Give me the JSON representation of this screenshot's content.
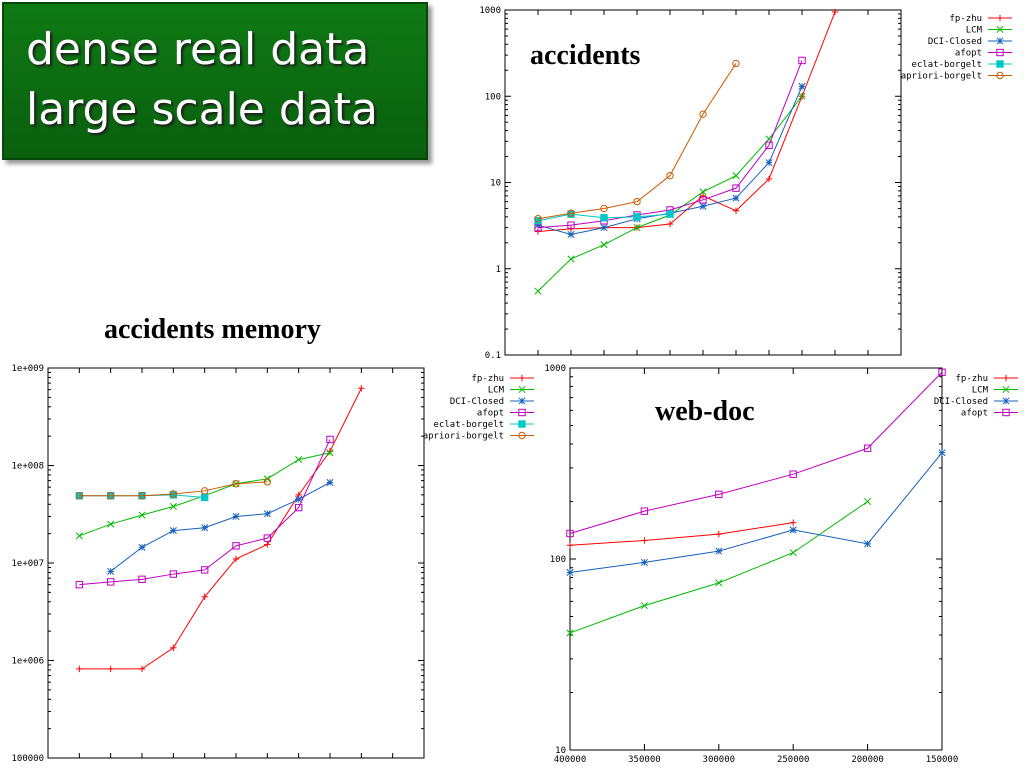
{
  "slide": {
    "title_lines": [
      "dense real data",
      "large scale data"
    ]
  },
  "chart_data": [
    {
      "id": "accidents",
      "type": "line",
      "title": "accidents",
      "yscale": "log",
      "ylim": [
        0.1,
        1000
      ],
      "yticks": [
        "1000",
        "100",
        "10",
        "1",
        "0.1"
      ],
      "xlim": [
        0,
        12
      ],
      "x": [
        1,
        2,
        3,
        4,
        5,
        6,
        7,
        8,
        9,
        10
      ],
      "legend_position": "top-right",
      "series": [
        {
          "name": "fp-zhu",
          "color": "#ff0000",
          "marker": "plus",
          "values": [
            2.7,
            2.9,
            3.0,
            3.0,
            3.3,
            7.0,
            4.7,
            11,
            100,
            950
          ]
        },
        {
          "name": "LCM",
          "color": "#00bb00",
          "marker": "x",
          "values": [
            0.55,
            1.3,
            1.9,
            3.0,
            4.2,
            7.8,
            12,
            32,
            100,
            null
          ]
        },
        {
          "name": "DCI-Closed",
          "color": "#1560bd",
          "marker": "star",
          "values": [
            3.2,
            2.5,
            3.0,
            3.8,
            4.4,
            5.3,
            6.6,
            17,
            130,
            null
          ]
        },
        {
          "name": "afopt",
          "color": "#c000c0",
          "marker": "square",
          "values": [
            3.0,
            3.2,
            3.6,
            4.2,
            4.8,
            6.3,
            8.6,
            27,
            260,
            null
          ]
        },
        {
          "name": "eclat-borgelt",
          "color": "#00c8c8",
          "marker": "filled-square",
          "values": [
            3.6,
            4.3,
            3.9,
            4.0,
            4.3,
            null,
            null,
            null,
            null,
            null
          ]
        },
        {
          "name": "apriori-borgelt",
          "color": "#c85a00",
          "marker": "circle",
          "values": [
            3.8,
            4.4,
            5.0,
            6.0,
            12,
            62,
            240,
            null,
            null,
            null
          ]
        }
      ]
    },
    {
      "id": "accidents-memory",
      "type": "line",
      "title": "accidents memory",
      "yscale": "log",
      "ylim": [
        100000,
        1000000000
      ],
      "yticks": [
        "1e+009",
        "1e+008",
        "1e+007",
        "1e+006",
        "100000"
      ],
      "xlim": [
        0,
        12
      ],
      "x": [
        1,
        2,
        3,
        4,
        5,
        6,
        7,
        8,
        9,
        10
      ],
      "legend_position": "top-right",
      "series": [
        {
          "name": "fp-zhu",
          "color": "#ff0000",
          "marker": "plus",
          "values": [
            820000,
            820000,
            820000,
            1350000,
            4500000,
            11000000,
            15500000,
            50000000,
            140000000,
            620000000
          ]
        },
        {
          "name": "LCM",
          "color": "#00bb00",
          "marker": "x",
          "values": [
            19000000,
            25000000,
            31000000,
            38000000,
            49000000,
            65000000,
            73000000,
            115000000,
            135000000,
            null
          ]
        },
        {
          "name": "DCI-Closed",
          "color": "#1560bd",
          "marker": "star",
          "values": [
            null,
            8200000,
            14500000,
            21500000,
            23000000,
            30000000,
            32000000,
            45000000,
            67000000,
            null
          ]
        },
        {
          "name": "afopt",
          "color": "#c000c0",
          "marker": "square",
          "values": [
            6000000,
            6400000,
            6800000,
            7700000,
            8500000,
            15000000,
            18000000,
            37000000,
            185000000,
            null
          ]
        },
        {
          "name": "eclat-borgelt",
          "color": "#00c8c8",
          "marker": "filled-square",
          "values": [
            49000000,
            49000000,
            49000000,
            50000000,
            47000000,
            null,
            null,
            null,
            null,
            null
          ]
        },
        {
          "name": "apriori-borgelt",
          "color": "#c85a00",
          "marker": "circle",
          "values": [
            49000000,
            49000000,
            49000000,
            51000000,
            55000000,
            65000000,
            68000000,
            null,
            null,
            null
          ]
        }
      ]
    },
    {
      "id": "web-doc",
      "type": "line",
      "title": "web-doc",
      "yscale": "log",
      "ylim": [
        10,
        1000
      ],
      "yticks": [
        "1000",
        "100",
        "10"
      ],
      "xlim": [
        400000,
        150000
      ],
      "xticks": [
        400000,
        350000,
        300000,
        250000,
        200000,
        150000
      ],
      "x": [
        400000,
        350000,
        300000,
        250000,
        200000,
        150000
      ],
      "legend_position": "top-right",
      "series": [
        {
          "name": "fp-zhu",
          "color": "#ff0000",
          "marker": "plus",
          "values": [
            118,
            125,
            135,
            155,
            null,
            null
          ]
        },
        {
          "name": "LCM",
          "color": "#00bb00",
          "marker": "x",
          "values": [
            41,
            57,
            75,
            108,
            200,
            null
          ]
        },
        {
          "name": "DCI-Closed",
          "color": "#1560bd",
          "marker": "star",
          "values": [
            85,
            96,
            110,
            142,
            120,
            360
          ]
        },
        {
          "name": "afopt",
          "color": "#c000c0",
          "marker": "square",
          "values": [
            136,
            178,
            218,
            278,
            380,
            950
          ]
        }
      ]
    }
  ]
}
